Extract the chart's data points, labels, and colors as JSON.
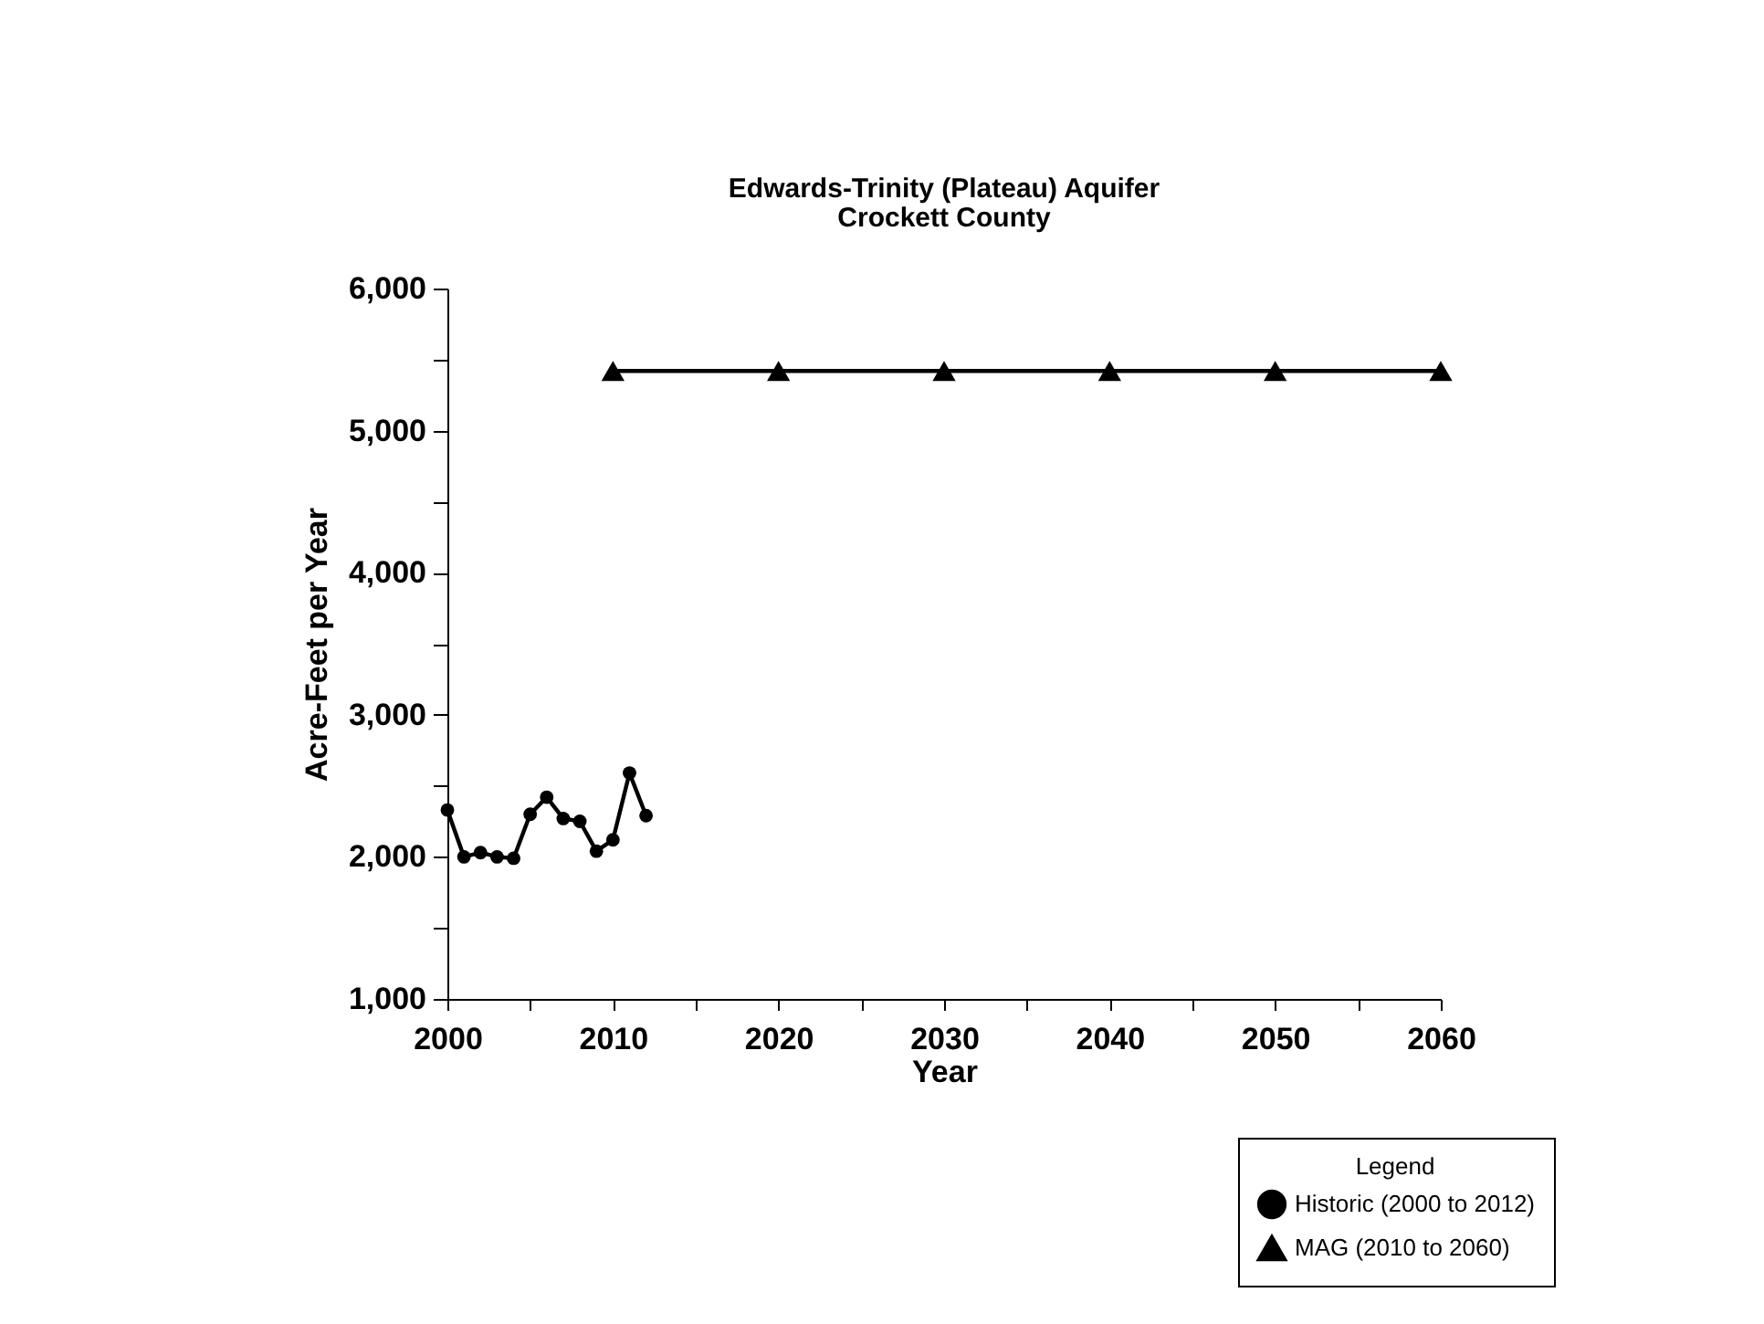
{
  "chart_data": {
    "type": "line",
    "title": "Edwards-Trinity (Plateau) Aquifer",
    "subtitle": "Crockett County",
    "xlabel": "Year",
    "ylabel": "Acre-Feet per Year",
    "legend_title": "Legend",
    "legend": "bottom right",
    "xlim": [
      2000,
      2060
    ],
    "ylim": [
      1000,
      6000
    ],
    "xticks": [
      2000,
      {
        "value": 2005,
        "label": null
      },
      2010,
      {
        "value": 2015,
        "label": null
      },
      2020,
      {
        "value": 2025,
        "label": null
      },
      2030,
      {
        "value": 2035,
        "label": null
      },
      2040,
      {
        "value": 2045,
        "label": null
      },
      2050,
      {
        "value": 2055,
        "label": null
      },
      2060
    ],
    "yticks": [
      {
        "value": 1000,
        "label": "1,000"
      },
      {
        "value": 1500,
        "label": null
      },
      {
        "value": 2000,
        "label": "2,000"
      },
      {
        "value": 2500,
        "label": null
      },
      {
        "value": 3000,
        "label": "3,000"
      },
      {
        "value": 3500,
        "label": null
      },
      {
        "value": 4000,
        "label": "4,000"
      },
      {
        "value": 4500,
        "label": null
      },
      {
        "value": 5000,
        "label": "5,000"
      },
      {
        "value": 5500,
        "label": null
      },
      {
        "value": 6000,
        "label": "6,000"
      }
    ],
    "series": [
      {
        "name": "Historic (2000 to 2012)",
        "color": "#000000",
        "marker": "circle",
        "x": [
          2000,
          2001,
          2002,
          2003,
          2004,
          2005,
          2006,
          2007,
          2008,
          2009,
          2010,
          2011,
          2012
        ],
        "values": [
          2330,
          2000,
          2030,
          2000,
          1990,
          2300,
          2420,
          2270,
          2250,
          2040,
          2120,
          2590,
          2290
        ]
      },
      {
        "name": "MAG (2010 to 2060)",
        "color": "#000000",
        "marker": "triangle",
        "x": [
          2010,
          2020,
          2030,
          2040,
          2050,
          2060
        ],
        "values": [
          5420,
          5420,
          5420,
          5420,
          5420,
          5420
        ]
      }
    ]
  }
}
